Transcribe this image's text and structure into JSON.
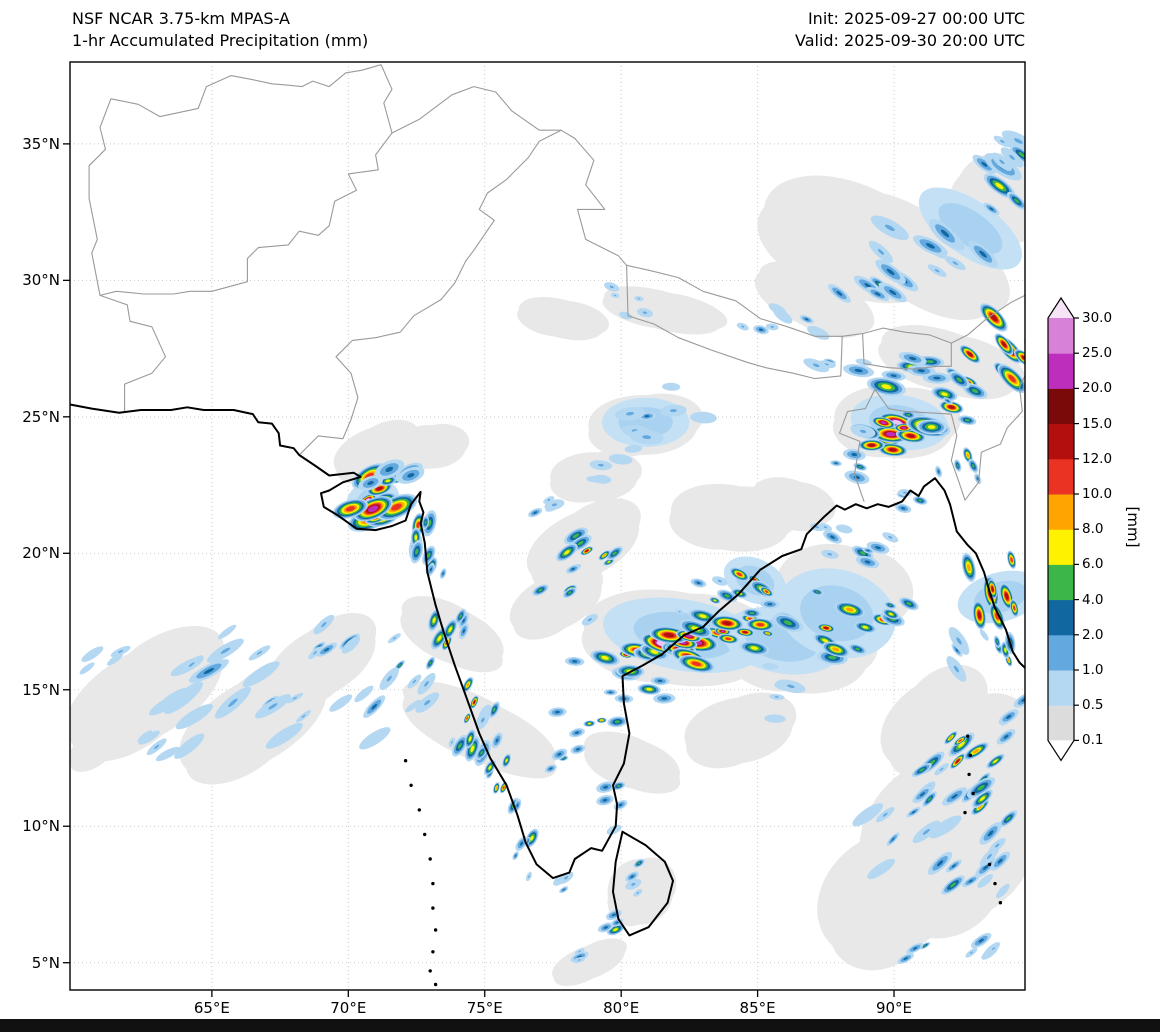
{
  "header": {
    "title_line1": "NSF NCAR 3.75-km MPAS-A",
    "title_line2": "1-hr Accumulated Precipitation (mm)",
    "init_line": "Init: 2025-09-27 00:00 UTC",
    "valid_line": "Valid: 2025-09-30 20:00 UTC"
  },
  "axes": {
    "lon_range": [
      59.8,
      94.8
    ],
    "lat_range": [
      4.0,
      38.0
    ],
    "x_ticks": [
      {
        "label": "65°E",
        "lon": 65
      },
      {
        "label": "70°E",
        "lon": 70
      },
      {
        "label": "75°E",
        "lon": 75
      },
      {
        "label": "80°E",
        "lon": 80
      },
      {
        "label": "85°E",
        "lon": 85
      },
      {
        "label": "90°E",
        "lon": 90
      }
    ],
    "y_ticks": [
      {
        "label": "35°N",
        "lat": 35
      },
      {
        "label": "30°N",
        "lat": 30
      },
      {
        "label": "25°N",
        "lat": 25
      },
      {
        "label": "20°N",
        "lat": 20
      },
      {
        "label": "15°N",
        "lat": 15
      },
      {
        "label": "10°N",
        "lat": 10
      },
      {
        "label": "5°N",
        "lat": 5
      }
    ],
    "grid_lons": [
      65,
      70,
      75,
      80,
      85,
      90
    ],
    "grid_lats": [
      5,
      10,
      15,
      20,
      25,
      30,
      35
    ]
  },
  "colorbar": {
    "unit_label": "[mm]",
    "levels": [
      0.1,
      0.5,
      1.0,
      2.0,
      4.0,
      6.0,
      8.0,
      10.0,
      12.0,
      15.0,
      20.0,
      25.0,
      30.0
    ],
    "tick_labels": [
      "30.0",
      "25.0",
      "20.0",
      "15.0",
      "12.0",
      "10.0",
      "8.0",
      "6.0",
      "4.0",
      "2.0",
      "1.0",
      "0.5",
      "0.1"
    ],
    "segment_colors_bottom_to_top": [
      "#dcdcdc",
      "#b5d8f2",
      "#63a9e0",
      "#1168a0",
      "#3cb649",
      "#fef200",
      "#ffa400",
      "#ea3323",
      "#b30f0f",
      "#7a0a0a",
      "#bd2ebd",
      "#d881d8"
    ],
    "under_color": "#ffffff",
    "over_color": "#f6e3f6"
  },
  "precip_features": {
    "ring_levels": [
      0.5,
      1,
      2,
      4,
      6,
      8,
      10,
      12,
      20,
      30
    ],
    "ring_palette": {
      "0.5": "#b5d8f2",
      "1": "#63a9e0",
      "2": "#1168a0",
      "4": "#3cb649",
      "6": "#fef200",
      "8": "#ffa400",
      "10": "#ea3323",
      "12": "#b30f0f",
      "20": "#bd2ebd",
      "30": "#efc4ef"
    },
    "gray_color": "#e8e8e8",
    "light_blue_colors": [
      "#c4e0f5",
      "#a9d2f0"
    ],
    "clusters": [
      {
        "lon": 70.8,
        "lat": 21.9,
        "n": 12,
        "dx": 0.55,
        "dy": 0.5,
        "ang": -25,
        "max": 30,
        "s": 10,
        "el": 1.6
      },
      {
        "lon": 71.6,
        "lat": 22.7,
        "n": 6,
        "dx": 0.5,
        "dy": 0.35,
        "ang": -20,
        "max": 8,
        "s": 8,
        "el": 1.5
      },
      {
        "lon": 72.5,
        "lat": 21.1,
        "n": 6,
        "dx": 0.3,
        "dy": 0.6,
        "ang": -80,
        "max": 10,
        "s": 7,
        "el": 1.6
      },
      {
        "lon": 72.9,
        "lat": 19.6,
        "n": 4,
        "dx": 0.3,
        "dy": 0.5,
        "ang": -70,
        "max": 6,
        "s": 6,
        "el": 1.5
      },
      {
        "lon": 73.6,
        "lat": 16.9,
        "n": 8,
        "dx": 0.45,
        "dy": 0.8,
        "ang": -65,
        "max": 10,
        "s": 6,
        "el": 1.7
      },
      {
        "lon": 74.5,
        "lat": 14.2,
        "n": 8,
        "dx": 0.45,
        "dy": 0.9,
        "ang": -65,
        "max": 12,
        "s": 6,
        "el": 1.7
      },
      {
        "lon": 75.6,
        "lat": 11.6,
        "n": 7,
        "dx": 0.45,
        "dy": 0.8,
        "ang": -65,
        "max": 10,
        "s": 6,
        "el": 1.6
      },
      {
        "lon": 76.6,
        "lat": 9.6,
        "n": 5,
        "dx": 0.4,
        "dy": 0.6,
        "ang": -60,
        "max": 6,
        "s": 5,
        "el": 1.5
      },
      {
        "lon": 75.0,
        "lat": 12.9,
        "n": 5,
        "dx": 0.5,
        "dy": 0.7,
        "ang": -60,
        "max": 4,
        "s": 5,
        "el": 1.5
      },
      {
        "lon": 64.8,
        "lat": 15.9,
        "n": 9,
        "dx": 1.3,
        "dy": 0.6,
        "ang": -35,
        "max": 2,
        "s": 7,
        "el": 2.8
      },
      {
        "lon": 66.8,
        "lat": 14.6,
        "n": 8,
        "dx": 1.2,
        "dy": 0.6,
        "ang": -35,
        "max": 2,
        "s": 6,
        "el": 2.8
      },
      {
        "lon": 69.8,
        "lat": 16.6,
        "n": 6,
        "dx": 0.9,
        "dy": 0.5,
        "ang": -35,
        "max": 4,
        "s": 6,
        "el": 2.2
      },
      {
        "lon": 70.9,
        "lat": 14.3,
        "n": 5,
        "dx": 0.8,
        "dy": 0.5,
        "ang": -40,
        "max": 2,
        "s": 6,
        "el": 2.4
      },
      {
        "lon": 72.3,
        "lat": 15.8,
        "n": 6,
        "dx": 0.7,
        "dy": 0.6,
        "ang": -45,
        "max": 4,
        "s": 6,
        "el": 2.0
      },
      {
        "lon": 63.0,
        "lat": 13.0,
        "n": 5,
        "dx": 1.0,
        "dy": 0.5,
        "ang": -35,
        "max": 1,
        "s": 6,
        "el": 2.6
      },
      {
        "lon": 61.3,
        "lat": 16.4,
        "n": 4,
        "dx": 0.7,
        "dy": 0.4,
        "ang": -30,
        "max": 1,
        "s": 5,
        "el": 2.4
      },
      {
        "lon": 78.8,
        "lat": 19.9,
        "n": 8,
        "dx": 0.8,
        "dy": 0.5,
        "ang": -30,
        "max": 12,
        "s": 6,
        "el": 1.7
      },
      {
        "lon": 77.9,
        "lat": 18.6,
        "n": 5,
        "dx": 0.6,
        "dy": 0.4,
        "ang": -30,
        "max": 8,
        "s": 5,
        "el": 1.6
      },
      {
        "lon": 76.9,
        "lat": 21.6,
        "n": 4,
        "dx": 0.5,
        "dy": 0.3,
        "ang": -20,
        "max": 2,
        "s": 5,
        "el": 1.6
      },
      {
        "lon": 80.1,
        "lat": 16.3,
        "n": 8,
        "dx": 0.8,
        "dy": 0.5,
        "ang": 10,
        "max": 12,
        "s": 7,
        "el": 1.7
      },
      {
        "lon": 82.0,
        "lat": 16.7,
        "n": 10,
        "dx": 0.9,
        "dy": 0.45,
        "ang": 12,
        "max": 30,
        "s": 9,
        "el": 1.9
      },
      {
        "lon": 83.9,
        "lat": 17.1,
        "n": 8,
        "dx": 0.8,
        "dy": 0.45,
        "ang": 12,
        "max": 20,
        "s": 8,
        "el": 1.8
      },
      {
        "lon": 85.3,
        "lat": 17.3,
        "n": 5,
        "dx": 0.6,
        "dy": 0.4,
        "ang": 10,
        "max": 10,
        "s": 6,
        "el": 1.7
      },
      {
        "lon": 84.9,
        "lat": 19.0,
        "n": 6,
        "dx": 0.6,
        "dy": 0.45,
        "ang": 25,
        "max": 15,
        "s": 6,
        "el": 1.6
      },
      {
        "lon": 83.3,
        "lat": 18.4,
        "n": 4,
        "dx": 0.5,
        "dy": 0.35,
        "ang": 20,
        "max": 6,
        "s": 5,
        "el": 1.5
      },
      {
        "lon": 80.8,
        "lat": 14.9,
        "n": 5,
        "dx": 0.7,
        "dy": 0.4,
        "ang": 0,
        "max": 6,
        "s": 5,
        "el": 1.7
      },
      {
        "lon": 79.0,
        "lat": 13.9,
        "n": 5,
        "dx": 0.6,
        "dy": 0.45,
        "ang": -10,
        "max": 8,
        "s": 5,
        "el": 1.5
      },
      {
        "lon": 77.9,
        "lat": 12.3,
        "n": 4,
        "dx": 0.5,
        "dy": 0.5,
        "ang": -20,
        "max": 4,
        "s": 5,
        "el": 1.4
      },
      {
        "lon": 79.9,
        "lat": 11.3,
        "n": 4,
        "dx": 0.5,
        "dy": 0.4,
        "ang": -20,
        "max": 4,
        "s": 5,
        "el": 1.4
      },
      {
        "lon": 81.0,
        "lat": 24.8,
        "n": 8,
        "dx": 1.0,
        "dy": 0.6,
        "ang": 0,
        "max": 2,
        "s": 7,
        "el": 1.8
      },
      {
        "lon": 79.3,
        "lat": 23.3,
        "n": 4,
        "dx": 0.7,
        "dy": 0.4,
        "ang": 0,
        "max": 1,
        "s": 6,
        "el": 1.8
      },
      {
        "lon": 80.8,
        "lat": 29.3,
        "n": 6,
        "dx": 1.2,
        "dy": 0.4,
        "ang": 15,
        "max": 2,
        "s": 4,
        "el": 1.5
      },
      {
        "lon": 84.8,
        "lat": 28.3,
        "n": 4,
        "dx": 0.8,
        "dy": 0.3,
        "ang": 15,
        "max": 2,
        "s": 4,
        "el": 1.5
      },
      {
        "lon": 87.4,
        "lat": 17.4,
        "n": 9,
        "dx": 0.9,
        "dy": 0.7,
        "ang": 15,
        "max": 15,
        "s": 7,
        "el": 1.7
      },
      {
        "lon": 88.8,
        "lat": 19.8,
        "n": 6,
        "dx": 0.7,
        "dy": 0.6,
        "ang": 20,
        "max": 4,
        "s": 6,
        "el": 1.7
      },
      {
        "lon": 86.3,
        "lat": 15.1,
        "n": 5,
        "dx": 0.8,
        "dy": 0.5,
        "ang": 10,
        "max": 2,
        "s": 6,
        "el": 2.0
      },
      {
        "lon": 89.6,
        "lat": 17.6,
        "n": 5,
        "dx": 0.6,
        "dy": 0.5,
        "ang": 20,
        "max": 10,
        "s": 6,
        "el": 1.6
      },
      {
        "lon": 87.6,
        "lat": 20.7,
        "n": 4,
        "dx": 0.5,
        "dy": 0.4,
        "ang": 20,
        "max": 2,
        "s": 5,
        "el": 1.6
      },
      {
        "lon": 93.7,
        "lat": 18.6,
        "n": 8,
        "dx": 0.5,
        "dy": 1.0,
        "ang": 75,
        "max": 25,
        "s": 7,
        "el": 1.8
      },
      {
        "lon": 94.3,
        "lat": 16.2,
        "n": 5,
        "dx": 0.4,
        "dy": 0.8,
        "ang": 75,
        "max": 8,
        "s": 6,
        "el": 1.7
      },
      {
        "lon": 92.5,
        "lat": 16.5,
        "n": 4,
        "dx": 0.5,
        "dy": 0.6,
        "ang": 60,
        "max": 2,
        "s": 6,
        "el": 2.0
      },
      {
        "lon": 89.9,
        "lat": 24.7,
        "n": 12,
        "dx": 0.9,
        "dy": 0.55,
        "ang": 8,
        "max": 30,
        "s": 9,
        "el": 1.8
      },
      {
        "lon": 91.8,
        "lat": 25.1,
        "n": 7,
        "dx": 0.7,
        "dy": 0.5,
        "ang": 10,
        "max": 15,
        "s": 7,
        "el": 1.6
      },
      {
        "lon": 88.6,
        "lat": 23.3,
        "n": 5,
        "dx": 0.6,
        "dy": 0.5,
        "ang": 10,
        "max": 4,
        "s": 6,
        "el": 1.6
      },
      {
        "lon": 90.8,
        "lat": 21.9,
        "n": 4,
        "dx": 0.5,
        "dy": 0.4,
        "ang": 10,
        "max": 4,
        "s": 5,
        "el": 1.5
      },
      {
        "lon": 92.7,
        "lat": 23.5,
        "n": 5,
        "dx": 0.5,
        "dy": 0.7,
        "ang": 70,
        "max": 8,
        "s": 6,
        "el": 1.5
      },
      {
        "lon": 90.6,
        "lat": 26.8,
        "n": 7,
        "dx": 1.2,
        "dy": 0.35,
        "ang": 10,
        "max": 6,
        "s": 6,
        "el": 2.0
      },
      {
        "lon": 87.6,
        "lat": 27.0,
        "n": 4,
        "dx": 0.8,
        "dy": 0.3,
        "ang": 15,
        "max": 2,
        "s": 5,
        "el": 2.0
      },
      {
        "lon": 94.0,
        "lat": 27.6,
        "n": 9,
        "dx": 0.7,
        "dy": 0.8,
        "ang": 45,
        "max": 25,
        "s": 8,
        "el": 1.8
      },
      {
        "lon": 92.8,
        "lat": 26.3,
        "n": 5,
        "dx": 0.6,
        "dy": 0.4,
        "ang": 30,
        "max": 10,
        "s": 6,
        "el": 1.6
      },
      {
        "lon": 89.3,
        "lat": 29.9,
        "n": 8,
        "dx": 1.1,
        "dy": 0.6,
        "ang": 35,
        "max": 4,
        "s": 7,
        "el": 2.2
      },
      {
        "lon": 91.8,
        "lat": 31.6,
        "n": 8,
        "dx": 1.1,
        "dy": 0.7,
        "ang": 35,
        "max": 4,
        "s": 7,
        "el": 2.2
      },
      {
        "lon": 93.9,
        "lat": 33.4,
        "n": 8,
        "dx": 0.8,
        "dy": 0.8,
        "ang": 35,
        "max": 6,
        "s": 8,
        "el": 2.0
      },
      {
        "lon": 94.7,
        "lat": 34.3,
        "n": 5,
        "dx": 0.5,
        "dy": 0.6,
        "ang": 35,
        "max": 4,
        "s": 7,
        "el": 2.0
      },
      {
        "lon": 87.0,
        "lat": 28.6,
        "n": 4,
        "dx": 0.7,
        "dy": 0.4,
        "ang": 30,
        "max": 2,
        "s": 5,
        "el": 1.8
      },
      {
        "lon": 92.6,
        "lat": 12.6,
        "n": 9,
        "dx": 0.9,
        "dy": 0.8,
        "ang": -40,
        "max": 12,
        "s": 6,
        "el": 2.2
      },
      {
        "lon": 93.6,
        "lat": 10.8,
        "n": 6,
        "dx": 0.7,
        "dy": 0.7,
        "ang": -40,
        "max": 8,
        "s": 6,
        "el": 2.0
      },
      {
        "lon": 91.4,
        "lat": 10.9,
        "n": 6,
        "dx": 0.8,
        "dy": 0.7,
        "ang": -40,
        "max": 4,
        "s": 6,
        "el": 2.2
      },
      {
        "lon": 90.0,
        "lat": 9.6,
        "n": 6,
        "dx": 0.9,
        "dy": 0.7,
        "ang": -40,
        "max": 2,
        "s": 6,
        "el": 2.4
      },
      {
        "lon": 92.2,
        "lat": 8.2,
        "n": 6,
        "dx": 0.9,
        "dy": 0.7,
        "ang": -40,
        "max": 4,
        "s": 6,
        "el": 2.2
      },
      {
        "lon": 94.2,
        "lat": 13.9,
        "n": 5,
        "dx": 0.6,
        "dy": 0.6,
        "ang": -40,
        "max": 6,
        "s": 6,
        "el": 1.8
      },
      {
        "lon": 94.0,
        "lat": 8.6,
        "n": 4,
        "dx": 0.6,
        "dy": 0.6,
        "ang": -40,
        "max": 2,
        "s": 5,
        "el": 2.0
      },
      {
        "lon": 91.2,
        "lat": 5.6,
        "n": 5,
        "dx": 0.8,
        "dy": 0.5,
        "ang": -35,
        "max": 4,
        "s": 5,
        "el": 2.0
      },
      {
        "lon": 93.4,
        "lat": 5.9,
        "n": 4,
        "dx": 0.7,
        "dy": 0.5,
        "ang": -35,
        "max": 2,
        "s": 5,
        "el": 2.0
      },
      {
        "lon": 80.6,
        "lat": 8.6,
        "n": 5,
        "dx": 0.5,
        "dy": 0.5,
        "ang": -30,
        "max": 4,
        "s": 5,
        "el": 1.5
      },
      {
        "lon": 80.0,
        "lat": 6.3,
        "n": 4,
        "dx": 0.6,
        "dy": 0.4,
        "ang": -20,
        "max": 6,
        "s": 5,
        "el": 1.5
      },
      {
        "lon": 77.9,
        "lat": 7.6,
        "n": 3,
        "dx": 0.4,
        "dy": 0.4,
        "ang": -30,
        "max": 2,
        "s": 5,
        "el": 1.6
      },
      {
        "lon": 78.6,
        "lat": 5.3,
        "n": 3,
        "dx": 0.5,
        "dy": 0.3,
        "ang": -20,
        "max": 2,
        "s": 5,
        "el": 1.8
      }
    ],
    "gray_patches": [
      [
        62.5,
        14.8,
        3.2,
        1.6,
        -30
      ],
      [
        66.5,
        13.8,
        3.0,
        1.5,
        -30
      ],
      [
        69.0,
        16.0,
        2.2,
        1.2,
        -30
      ],
      [
        71.0,
        23.7,
        1.6,
        0.9,
        -20
      ],
      [
        73.0,
        23.9,
        1.3,
        0.8,
        0
      ],
      [
        74.8,
        13.5,
        1.1,
        3.0,
        -68
      ],
      [
        73.8,
        17.0,
        1.0,
        2.0,
        -68
      ],
      [
        78.6,
        20.3,
        2.2,
        1.2,
        -25
      ],
      [
        77.6,
        18.2,
        1.8,
        1.0,
        -25
      ],
      [
        82.0,
        16.9,
        3.4,
        1.7,
        10
      ],
      [
        86.5,
        16.5,
        2.6,
        1.6,
        10
      ],
      [
        80.8,
        24.7,
        2.0,
        1.1,
        0
      ],
      [
        79.0,
        22.8,
        1.6,
        0.9,
        0
      ],
      [
        84.0,
        21.3,
        2.2,
        1.2,
        10
      ],
      [
        86.2,
        21.8,
        1.5,
        0.9,
        20
      ],
      [
        88.0,
        18.5,
        2.4,
        1.8,
        15
      ],
      [
        90.0,
        24.8,
        2.2,
        1.3,
        8
      ],
      [
        92.0,
        27.0,
        2.6,
        1.1,
        20
      ],
      [
        91.0,
        30.8,
        3.2,
        1.6,
        35
      ],
      [
        87.0,
        29.3,
        2.2,
        1.0,
        30
      ],
      [
        94.0,
        33.0,
        1.8,
        1.6,
        35
      ],
      [
        88.5,
        31.5,
        3.5,
        2.0,
        25
      ],
      [
        92.0,
        9.5,
        3.4,
        3.0,
        -35
      ],
      [
        89.8,
        7.5,
        2.8,
        2.2,
        -35
      ],
      [
        93.5,
        12.5,
        2.0,
        2.0,
        -35
      ],
      [
        91.5,
        13.8,
        2.2,
        1.5,
        -35
      ],
      [
        84.3,
        13.5,
        2.0,
        1.2,
        -10
      ],
      [
        80.4,
        12.3,
        0.9,
        1.8,
        -75
      ],
      [
        77.8,
        28.6,
        1.6,
        0.7,
        15
      ],
      [
        81.5,
        28.9,
        2.2,
        0.7,
        15
      ],
      [
        60.8,
        12.9,
        1.2,
        0.6,
        -30
      ],
      [
        80.7,
        7.6,
        1.2,
        1.2,
        0
      ],
      [
        78.8,
        5.0,
        1.4,
        0.6,
        -20
      ]
    ],
    "blue_patches": [
      [
        82.3,
        17.0,
        3.0,
        1.3,
        10
      ],
      [
        85.9,
        16.8,
        2.2,
        1.2,
        10
      ],
      [
        87.9,
        17.8,
        2.2,
        1.6,
        15
      ],
      [
        90.2,
        24.8,
        1.8,
        1.0,
        8
      ],
      [
        70.9,
        21.9,
        1.0,
        0.8,
        -20
      ],
      [
        93.9,
        18.4,
        0.9,
        1.6,
        75
      ],
      [
        84.9,
        19.0,
        1.2,
        0.8,
        25
      ],
      [
        80.9,
        24.8,
        1.6,
        0.9,
        0
      ],
      [
        92.8,
        31.9,
        2.2,
        1.0,
        35
      ]
    ],
    "islands": [
      [
        72.1,
        12.4
      ],
      [
        72.3,
        11.5
      ],
      [
        72.6,
        10.6
      ],
      [
        72.8,
        9.7
      ],
      [
        73.0,
        8.8
      ],
      [
        73.1,
        7.9
      ],
      [
        73.1,
        7.0
      ],
      [
        73.2,
        6.2
      ],
      [
        73.1,
        5.4
      ],
      [
        73.0,
        4.7
      ],
      [
        73.2,
        4.2
      ],
      [
        92.7,
        13.3
      ],
      [
        92.8,
        12.6
      ],
      [
        92.75,
        11.9
      ],
      [
        92.9,
        11.2
      ],
      [
        92.6,
        10.5
      ],
      [
        93.5,
        8.6
      ],
      [
        93.7,
        7.9
      ],
      [
        93.9,
        7.2
      ]
    ]
  }
}
